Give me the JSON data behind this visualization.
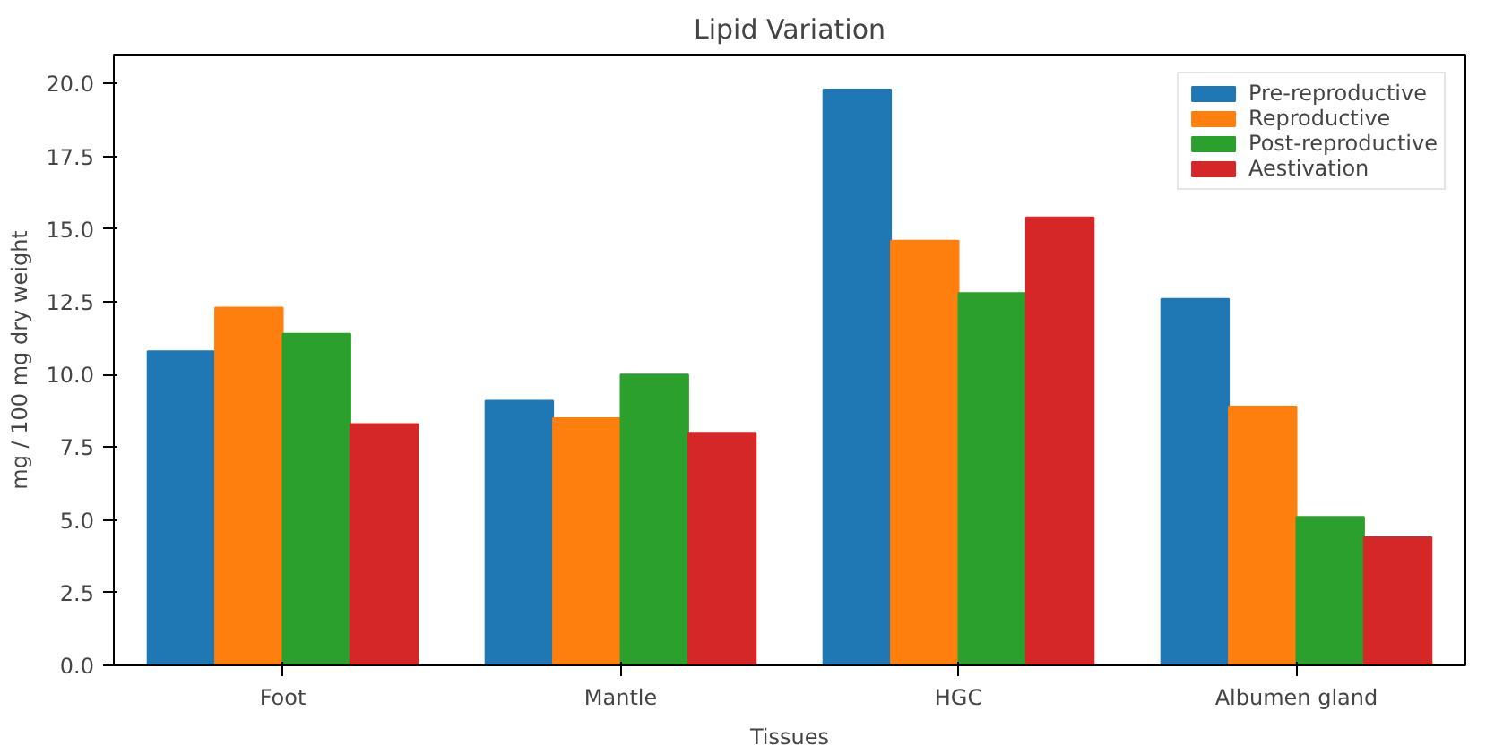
{
  "chart_data": {
    "type": "bar",
    "title": "Lipid Variation",
    "xlabel": "Tissues",
    "ylabel": "mg / 100 mg dry weight",
    "categories": [
      "Foot",
      "Mantle",
      "HGC",
      "Albumen gland"
    ],
    "series": [
      {
        "name": "Pre-reproductive",
        "color": "#1f77b4",
        "values": [
          10.8,
          9.1,
          19.8,
          12.6
        ]
      },
      {
        "name": "Reproductive",
        "color": "#ff7f0e",
        "values": [
          12.3,
          8.5,
          14.6,
          8.9
        ]
      },
      {
        "name": "Post-reproductive",
        "color": "#2ca02c",
        "values": [
          11.4,
          10.0,
          12.8,
          5.1
        ]
      },
      {
        "name": "Aestivation",
        "color": "#d62728",
        "values": [
          8.3,
          8.0,
          15.4,
          4.4
        ]
      }
    ],
    "ylim": [
      0,
      21
    ],
    "yticks": [
      {
        "value": 0,
        "label": "0.0"
      },
      2.5,
      {
        "value": 5,
        "label": "5.0"
      },
      7.5,
      {
        "value": 10,
        "label": "10.0"
      },
      12.5,
      {
        "value": 15,
        "label": "15.0"
      },
      17.5,
      {
        "value": 20,
        "label": "20.0"
      }
    ],
    "grid": false,
    "legend": "top right"
  }
}
